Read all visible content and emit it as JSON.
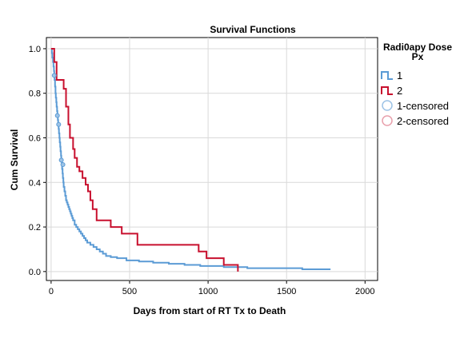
{
  "chart_data": {
    "type": "line",
    "title": "Survival Functions",
    "xlabel": "Days from start of RT Tx to Death",
    "ylabel": "Cum Survival",
    "xlim": [
      -30,
      2080
    ],
    "ylim": [
      -0.04,
      1.05
    ],
    "xticks": [
      "0",
      "500",
      "1000",
      "1500",
      "2000"
    ],
    "xtick_values": [
      0,
      500,
      1000,
      1500,
      2000
    ],
    "yticks": [
      "0.0",
      "0.2",
      "0.4",
      "0.6",
      "0.8",
      "1.0"
    ],
    "ytick_values": [
      0,
      0.2,
      0.4,
      0.6,
      0.8,
      1.0
    ],
    "grid": true,
    "legend": {
      "title": "Radi0apy Dose Px",
      "placement": "right",
      "entries": [
        "1",
        "2",
        "1-censored",
        "2-censored"
      ]
    },
    "series": [
      {
        "name": "1",
        "color": "#5b9bd5",
        "x": [
          0,
          5,
          8,
          12,
          15,
          18,
          20,
          22,
          25,
          28,
          30,
          33,
          35,
          38,
          40,
          43,
          45,
          48,
          50,
          53,
          55,
          58,
          60,
          63,
          65,
          68,
          70,
          73,
          75,
          78,
          80,
          85,
          90,
          95,
          100,
          105,
          110,
          115,
          120,
          125,
          130,
          135,
          140,
          150,
          160,
          170,
          180,
          190,
          200,
          210,
          220,
          230,
          250,
          270,
          290,
          310,
          330,
          350,
          380,
          420,
          480,
          560,
          650,
          750,
          850,
          950,
          1100,
          1250,
          1600,
          1780
        ],
        "y": [
          1.0,
          0.98,
          0.96,
          0.94,
          0.92,
          0.9,
          0.88,
          0.86,
          0.83,
          0.8,
          0.78,
          0.76,
          0.74,
          0.72,
          0.7,
          0.68,
          0.66,
          0.64,
          0.62,
          0.6,
          0.58,
          0.56,
          0.54,
          0.52,
          0.5,
          0.48,
          0.46,
          0.44,
          0.42,
          0.4,
          0.38,
          0.36,
          0.34,
          0.32,
          0.31,
          0.3,
          0.29,
          0.28,
          0.27,
          0.26,
          0.25,
          0.24,
          0.23,
          0.21,
          0.2,
          0.19,
          0.18,
          0.17,
          0.16,
          0.15,
          0.14,
          0.13,
          0.12,
          0.11,
          0.1,
          0.09,
          0.08,
          0.07,
          0.065,
          0.06,
          0.05,
          0.045,
          0.04,
          0.035,
          0.03,
          0.025,
          0.02,
          0.015,
          0.01,
          0.01
        ]
      },
      {
        "name": "2",
        "color": "#c8102e",
        "x": [
          0,
          20,
          35,
          80,
          95,
          110,
          120,
          140,
          150,
          165,
          180,
          200,
          220,
          235,
          250,
          265,
          290,
          330,
          380,
          420,
          450,
          550,
          940,
          990,
          1100,
          1130,
          1190
        ],
        "y": [
          1.0,
          0.94,
          0.86,
          0.82,
          0.74,
          0.66,
          0.6,
          0.55,
          0.51,
          0.47,
          0.45,
          0.42,
          0.39,
          0.36,
          0.32,
          0.28,
          0.23,
          0.23,
          0.2,
          0.2,
          0.17,
          0.12,
          0.09,
          0.06,
          0.03,
          0.03,
          0.0
        ]
      }
    ],
    "censored": [
      {
        "series": "1",
        "points": [
          [
            20,
            0.88
          ],
          [
            40,
            0.7
          ],
          [
            48,
            0.66
          ],
          [
            65,
            0.5
          ],
          [
            75,
            0.48
          ]
        ]
      }
    ]
  }
}
